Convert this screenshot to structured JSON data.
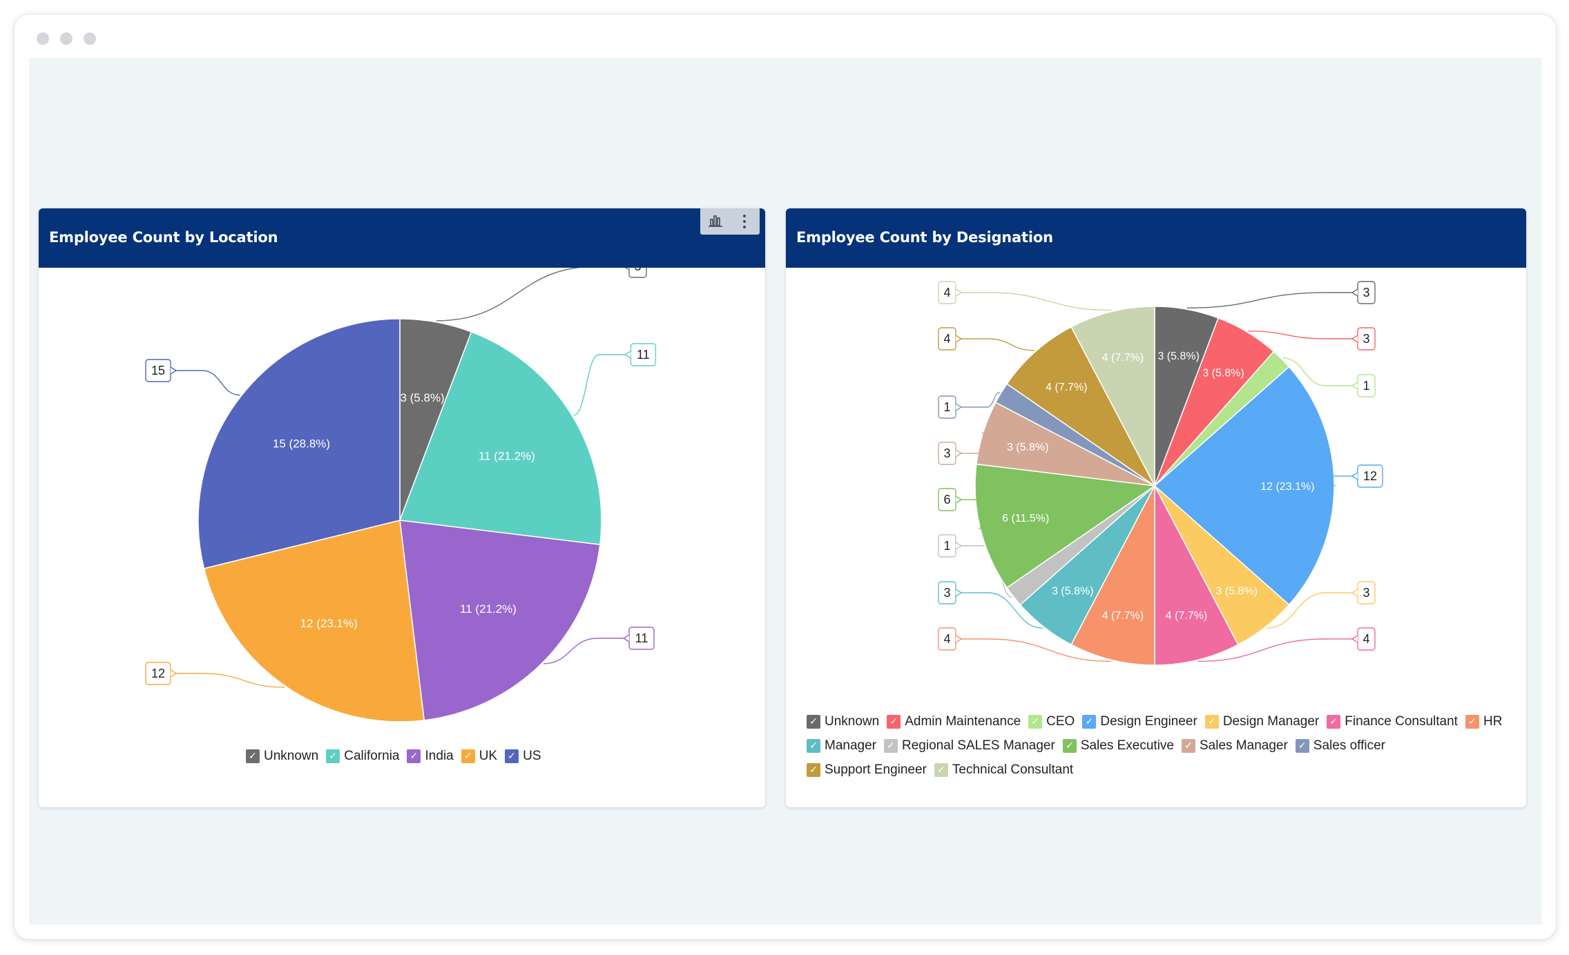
{
  "window": {
    "controls": [
      "close",
      "minimize",
      "maximize"
    ]
  },
  "cards": [
    {
      "title": "Employee Count by Location",
      "toolbar": {
        "chart_icon": "bar-chart-icon",
        "more_icon": "more-vertical-icon"
      }
    },
    {
      "title": "Employee Count by Designation"
    }
  ],
  "chart_data": [
    {
      "type": "pie",
      "title": "Employee Count by Location",
      "legend_position": "bottom",
      "slices": [
        {
          "label": "Unknown",
          "value": 3,
          "percent": "5.8%",
          "color": "#6d6d6d"
        },
        {
          "label": "California",
          "value": 11,
          "percent": "21.2%",
          "color": "#5ccfc3"
        },
        {
          "label": "India",
          "value": 11,
          "percent": "21.2%",
          "color": "#9966cd"
        },
        {
          "label": "UK",
          "value": 12,
          "percent": "23.1%",
          "color": "#f9a93b"
        },
        {
          "label": "US",
          "value": 15,
          "percent": "28.8%",
          "color": "#5465be"
        }
      ]
    },
    {
      "type": "pie",
      "title": "Employee Count by Designation",
      "legend_position": "bottom",
      "slices": [
        {
          "label": "Unknown",
          "value": 3,
          "percent": "5.8%",
          "color": "#6a6a6a"
        },
        {
          "label": "Admin Maintenance",
          "value": 3,
          "percent": "5.8%",
          "color": "#f9636b"
        },
        {
          "label": "CEO",
          "value": 1,
          "percent": "",
          "color": "#b2e58c"
        },
        {
          "label": "Design Engineer",
          "value": 12,
          "percent": "23.1%",
          "color": "#58a9f6"
        },
        {
          "label": "Design Manager",
          "value": 3,
          "percent": "5.8%",
          "color": "#fbcb61"
        },
        {
          "label": "Finance Consultant",
          "value": 4,
          "percent": "7.7%",
          "color": "#f06b9f"
        },
        {
          "label": "HR",
          "value": 4,
          "percent": "7.7%",
          "color": "#f7926a"
        },
        {
          "label": "Manager",
          "value": 3,
          "percent": "5.8%",
          "color": "#5fbdc5"
        },
        {
          "label": "Regional SALES Manager",
          "value": 1,
          "percent": "",
          "color": "#c2c2c2"
        },
        {
          "label": "Sales Executive",
          "value": 6,
          "percent": "11.5%",
          "color": "#80c160"
        },
        {
          "label": "Sales Manager",
          "value": 3,
          "percent": "5.8%",
          "color": "#d3a995"
        },
        {
          "label": "Sales officer",
          "value": 1,
          "percent": "",
          "color": "#8396bb"
        },
        {
          "label": "Support Engineer",
          "value": 4,
          "percent": "7.7%",
          "color": "#c39a3c"
        },
        {
          "label": "Technical Consultant",
          "value": 4,
          "percent": "7.7%",
          "color": "#c9d5b1"
        }
      ]
    }
  ]
}
